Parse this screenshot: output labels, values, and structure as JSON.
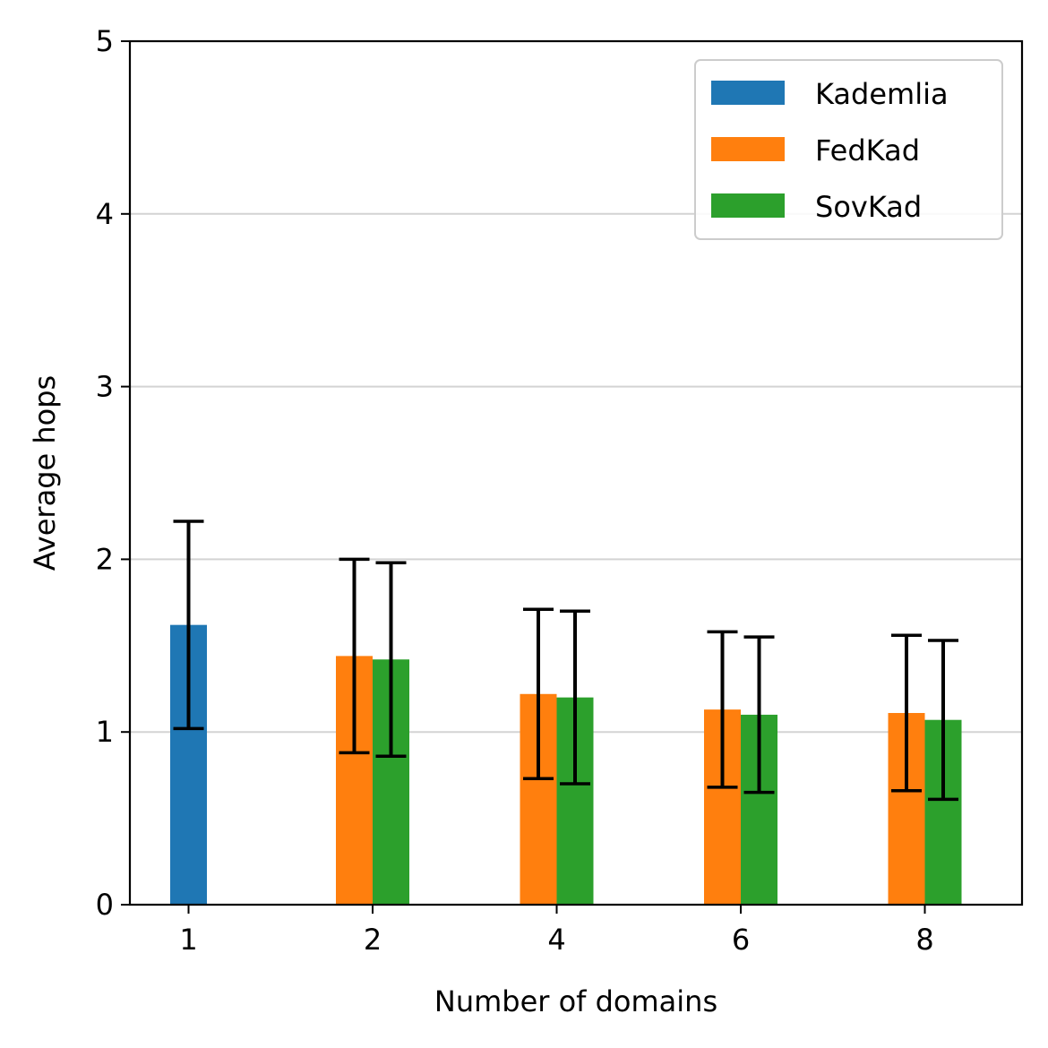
{
  "chart_data": {
    "type": "bar",
    "categories": [
      "1",
      "2",
      "4",
      "6",
      "8"
    ],
    "xlabel": "Number of domains",
    "ylabel": "Average hops",
    "ylim": [
      0,
      5
    ],
    "yticks": [
      "0",
      "1",
      "2",
      "3",
      "4",
      "5"
    ],
    "grid": "horizontal",
    "legend_position": "top-right",
    "series": [
      {
        "name": "Kademlia",
        "color": "#1f77b4",
        "values": [
          1.62,
          null,
          null,
          null,
          null
        ],
        "err": [
          0.6,
          null,
          null,
          null,
          null
        ]
      },
      {
        "name": "FedKad",
        "color": "#ff7f0e",
        "values": [
          null,
          1.44,
          1.22,
          1.13,
          1.11
        ],
        "err": [
          null,
          0.56,
          0.49,
          0.45,
          0.45
        ]
      },
      {
        "name": "SovKad",
        "color": "#2ca02c",
        "values": [
          null,
          1.42,
          1.2,
          1.1,
          1.07
        ],
        "err": [
          null,
          0.56,
          0.5,
          0.45,
          0.46
        ]
      }
    ]
  }
}
